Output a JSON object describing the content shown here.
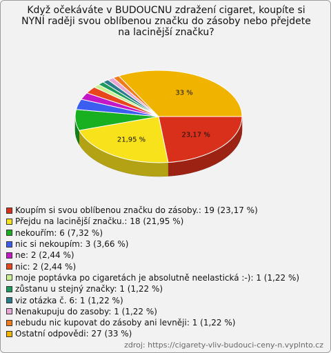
{
  "chart_data": {
    "type": "pie3d",
    "title": "Když očekáváte v BUDOUCNU zdražení cigaret, koupíte si NYNÍ raději svou oblíbenou značku do zásoby nebo přejdete na lacinější značku?",
    "categories": [
      "Koupím si svou oblíbenou značku do zásoby.",
      "Přejdu na lacinější značku.",
      "nekouřím",
      "nic si nekoupím",
      "ne",
      "nic",
      "moje poptávka po cigaretách je absolutně neelastická :-)",
      "zůstanu u stejný značky",
      "viz otázka č. 6",
      "Nenakupuju do zasoby",
      "nebudu nic kupovat do zásoby ani levněji",
      "Ostatní odpovědi"
    ],
    "values": [
      19,
      18,
      6,
      3,
      2,
      2,
      1,
      1,
      1,
      1,
      1,
      27
    ],
    "legend": [
      "Koupím si svou oblíbenou značku do zásoby.: 19 (23,17 %)",
      "Přejdu na lacinější značku.: 18 (21,95 %)",
      "nekouřím: 6 (7,32 %)",
      "nic si nekoupím: 3 (3,66 %)",
      "ne: 2 (2,44 %)",
      "nic: 2 (2,44 %)",
      "moje poptávka po cigaretách je absolutně neelastická :-): 1 (1,22 %)",
      "zůstanu u stejný značky: 1 (1,22 %)",
      "viz otázka č. 6: 1 (1,22 %)",
      "Nenakupuju do zasoby: 1 (1,22 %)",
      "nebudu nic kupovat do zásoby ani levněji: 1 (1,22 %)",
      "Ostatní odpovědi: 27 (33 %)"
    ],
    "value_labels": [
      "23,17 %",
      "21,95 %",
      null,
      null,
      null,
      null,
      null,
      null,
      null,
      null,
      null,
      "33 %"
    ],
    "colors": [
      "#d8301a",
      "#f8e21c",
      "#18b020",
      "#3c5ef0",
      "#c418c8",
      "#e8461c",
      "#c8f090",
      "#1e9a5c",
      "#2a7c8c",
      "#e8a6d4",
      "#f07a1c",
      "#f0b400"
    ],
    "source": "zdroj: https://cigarety-vliv-budouci-ceny-n.vyplnto.cz"
  }
}
